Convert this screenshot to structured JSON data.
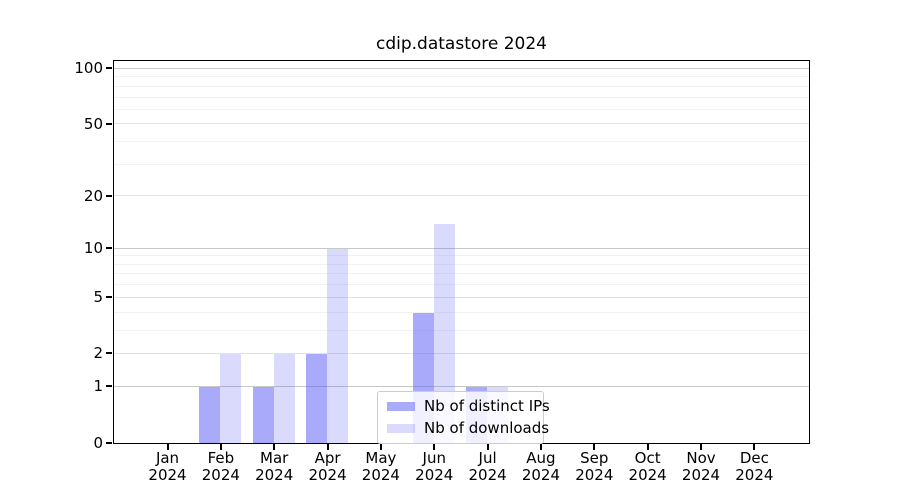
{
  "title": "cdip.datastore 2024",
  "chart_data": {
    "type": "bar",
    "title": "cdip.datastore 2024",
    "categories": [
      {
        "month": "Jan",
        "year": "2024"
      },
      {
        "month": "Feb",
        "year": "2024"
      },
      {
        "month": "Mar",
        "year": "2024"
      },
      {
        "month": "Apr",
        "year": "2024"
      },
      {
        "month": "May",
        "year": "2024"
      },
      {
        "month": "Jun",
        "year": "2024"
      },
      {
        "month": "Jul",
        "year": "2024"
      },
      {
        "month": "Aug",
        "year": "2024"
      },
      {
        "month": "Sep",
        "year": "2024"
      },
      {
        "month": "Oct",
        "year": "2024"
      },
      {
        "month": "Nov",
        "year": "2024"
      },
      {
        "month": "Dec",
        "year": "2024"
      }
    ],
    "series": [
      {
        "name": "Nb of distinct IPs",
        "color": "rgba(85,85,245,0.5)",
        "color_on_white": "#aaaafa",
        "values": [
          0,
          1,
          1,
          2,
          0,
          4,
          1,
          0,
          0,
          0,
          0,
          0
        ]
      },
      {
        "name": "Nb of downloads",
        "color": "rgba(85,85,245,0.22)",
        "color_on_white": "#d9d9fa",
        "values": [
          0,
          2,
          2,
          10,
          0,
          14,
          1,
          0,
          0,
          0,
          0,
          0
        ]
      }
    ],
    "yscale": "log1p",
    "ylim": [
      0,
      113
    ],
    "ytick_labels": [
      "0",
      "1",
      "2",
      "5",
      "10",
      "20",
      "50",
      "100"
    ],
    "yticks": [
      0,
      1,
      2,
      5,
      10,
      20,
      50,
      100
    ],
    "minor_gridline_values": [
      3,
      4,
      6,
      7,
      8,
      9,
      30,
      40,
      60,
      70,
      80,
      90
    ],
    "grid": true,
    "legend_position": "lower center",
    "xlabel": "",
    "ylabel": ""
  },
  "colors": {
    "background": "#ffffff",
    "spine": "#000000",
    "text": "#000000",
    "grid_major": "#c8c8c8",
    "grid_mid": "#e3e3e3",
    "grid_minor": "#f2f2f2"
  }
}
